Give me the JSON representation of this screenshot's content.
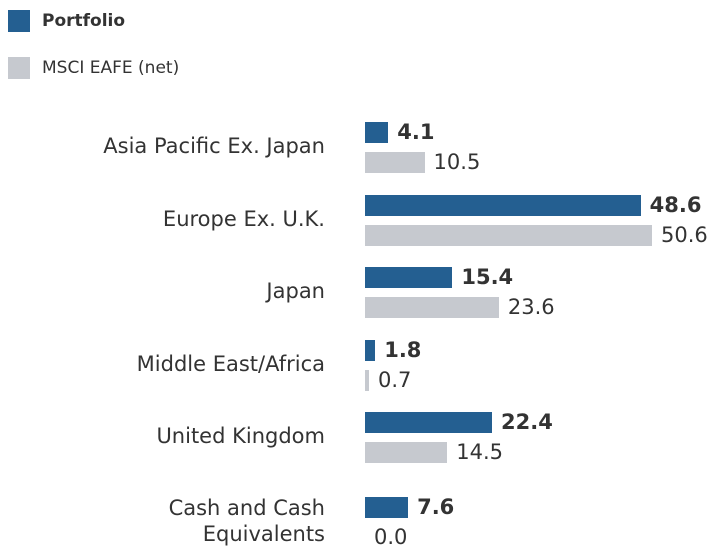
{
  "chart_data": {
    "type": "bar",
    "orientation": "horizontal",
    "categories": [
      "Asia Pacific Ex. Japan",
      "Europe Ex. U.K.",
      "Japan",
      "Middle East/Africa",
      "United Kingdom",
      "Cash and Cash Equivalents"
    ],
    "series": [
      {
        "name": "Portfolio",
        "color": "#245f91",
        "values": [
          4.1,
          48.6,
          15.4,
          1.8,
          22.4,
          7.6
        ],
        "value_labels": [
          "4.1",
          "48.6",
          "15.4",
          "1.8",
          "22.4",
          "7.6"
        ]
      },
      {
        "name": "MSCI EAFE (net)",
        "color": "#c6c9cf",
        "values": [
          10.5,
          50.6,
          23.6,
          0.7,
          14.5,
          0.0
        ],
        "value_labels": [
          "10.5",
          "50.6",
          "23.6",
          "0.7",
          "14.5",
          "0.0"
        ]
      }
    ],
    "legend": "top-left"
  }
}
